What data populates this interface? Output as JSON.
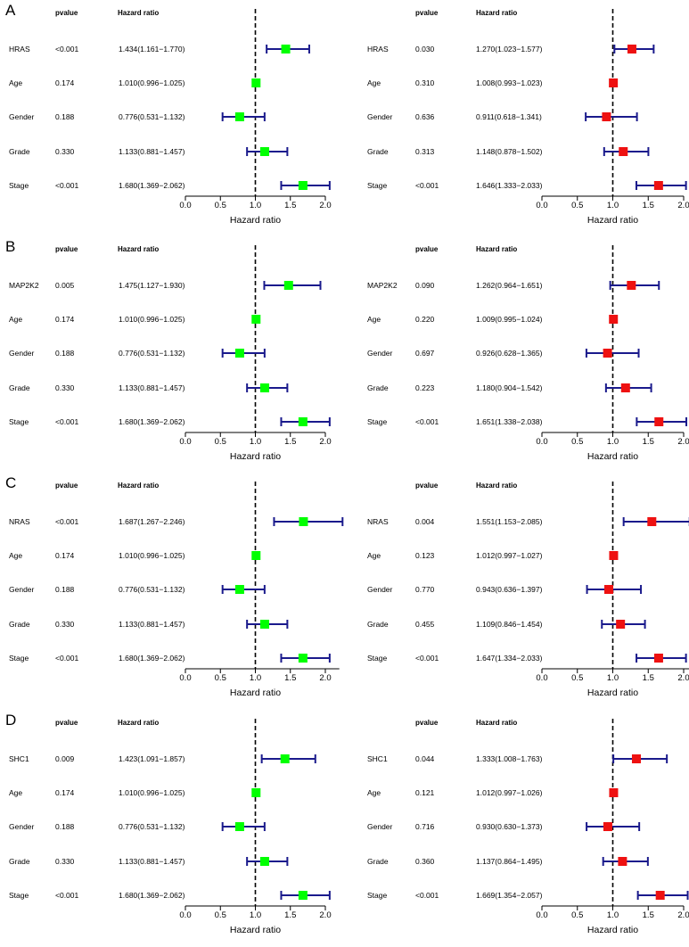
{
  "chart_data": {
    "type": "forest",
    "panels": [
      {
        "letter": "A",
        "charts": [
          {
            "color": "#00ff00",
            "header": {
              "pvalue": "pvalue",
              "hr": "Hazard ratio"
            },
            "xlabel": "Hazard ratio",
            "xlim": [
              0,
              2
            ],
            "ticks": [
              "0.0",
              "0.5",
              "1.0",
              "1.5",
              "2.0"
            ],
            "refline": 1,
            "rows": [
              {
                "label": "HRAS",
                "pvalue": "<0.001",
                "hr_text": "1.434(1.161−1.770)",
                "hr": 1.434,
                "lo": 1.161,
                "hi": 1.77
              },
              {
                "label": "Age",
                "pvalue": "0.174",
                "hr_text": "1.010(0.996−1.025)",
                "hr": 1.01,
                "lo": 0.996,
                "hi": 1.025
              },
              {
                "label": "Gender",
                "pvalue": "0.188",
                "hr_text": "0.776(0.531−1.132)",
                "hr": 0.776,
                "lo": 0.531,
                "hi": 1.132
              },
              {
                "label": "Grade",
                "pvalue": "0.330",
                "hr_text": "1.133(0.881−1.457)",
                "hr": 1.133,
                "lo": 0.881,
                "hi": 1.457
              },
              {
                "label": "Stage",
                "pvalue": "<0.001",
                "hr_text": "1.680(1.369−2.062)",
                "hr": 1.68,
                "lo": 1.369,
                "hi": 2.062
              }
            ]
          },
          {
            "color": "#ee1111",
            "header": {
              "pvalue": "pvalue",
              "hr": "Hazard ratio"
            },
            "xlabel": "Hazard ratio",
            "xlim": [
              0,
              2
            ],
            "ticks": [
              "0.0",
              "0.5",
              "1.0",
              "1.5",
              "2.0"
            ],
            "refline": 1,
            "rows": [
              {
                "label": "HRAS",
                "pvalue": "0.030",
                "hr_text": "1.270(1.023−1.577)",
                "hr": 1.27,
                "lo": 1.023,
                "hi": 1.577
              },
              {
                "label": "Age",
                "pvalue": "0.310",
                "hr_text": "1.008(0.993−1.023)",
                "hr": 1.008,
                "lo": 0.993,
                "hi": 1.023
              },
              {
                "label": "Gender",
                "pvalue": "0.636",
                "hr_text": "0.911(0.618−1.341)",
                "hr": 0.911,
                "lo": 0.618,
                "hi": 1.341
              },
              {
                "label": "Grade",
                "pvalue": "0.313",
                "hr_text": "1.148(0.878−1.502)",
                "hr": 1.148,
                "lo": 0.878,
                "hi": 1.502
              },
              {
                "label": "Stage",
                "pvalue": "<0.001",
                "hr_text": "1.646(1.333−2.033)",
                "hr": 1.646,
                "lo": 1.333,
                "hi": 2.033
              }
            ]
          }
        ]
      },
      {
        "letter": "B",
        "charts": [
          {
            "color": "#00ff00",
            "header": {
              "pvalue": "pvalue",
              "hr": "Hazard ratio"
            },
            "xlabel": "Hazard ratio",
            "xlim": [
              0,
              2
            ],
            "ticks": [
              "0.0",
              "0.5",
              "1.0",
              "1.5",
              "2.0"
            ],
            "refline": 1,
            "rows": [
              {
                "label": "MAP2K2",
                "pvalue": "0.005",
                "hr_text": "1.475(1.127−1.930)",
                "hr": 1.475,
                "lo": 1.127,
                "hi": 1.93
              },
              {
                "label": "Age",
                "pvalue": "0.174",
                "hr_text": "1.010(0.996−1.025)",
                "hr": 1.01,
                "lo": 0.996,
                "hi": 1.025
              },
              {
                "label": "Gender",
                "pvalue": "0.188",
                "hr_text": "0.776(0.531−1.132)",
                "hr": 0.776,
                "lo": 0.531,
                "hi": 1.132
              },
              {
                "label": "Grade",
                "pvalue": "0.330",
                "hr_text": "1.133(0.881−1.457)",
                "hr": 1.133,
                "lo": 0.881,
                "hi": 1.457
              },
              {
                "label": "Stage",
                "pvalue": "<0.001",
                "hr_text": "1.680(1.369−2.062)",
                "hr": 1.68,
                "lo": 1.369,
                "hi": 2.062
              }
            ]
          },
          {
            "color": "#ee1111",
            "header": {
              "pvalue": "pvalue",
              "hr": "Hazard ratio"
            },
            "xlabel": "Hazard ratio",
            "xlim": [
              0,
              2
            ],
            "ticks": [
              "0.0",
              "0.5",
              "1.0",
              "1.5",
              "2.0"
            ],
            "refline": 1,
            "rows": [
              {
                "label": "MAP2K2",
                "pvalue": "0.090",
                "hr_text": "1.262(0.964−1.651)",
                "hr": 1.262,
                "lo": 0.964,
                "hi": 1.651
              },
              {
                "label": "Age",
                "pvalue": "0.220",
                "hr_text": "1.009(0.995−1.024)",
                "hr": 1.009,
                "lo": 0.995,
                "hi": 1.024
              },
              {
                "label": "Gender",
                "pvalue": "0.697",
                "hr_text": "0.926(0.628−1.365)",
                "hr": 0.926,
                "lo": 0.628,
                "hi": 1.365
              },
              {
                "label": "Grade",
                "pvalue": "0.223",
                "hr_text": "1.180(0.904−1.542)",
                "hr": 1.18,
                "lo": 0.904,
                "hi": 1.542
              },
              {
                "label": "Stage",
                "pvalue": "<0.001",
                "hr_text": "1.651(1.338−2.038)",
                "hr": 1.651,
                "lo": 1.338,
                "hi": 2.038
              }
            ]
          }
        ]
      },
      {
        "letter": "C",
        "charts": [
          {
            "color": "#00ff00",
            "header": {
              "pvalue": "pvalue",
              "hr": "Hazard ratio"
            },
            "xlabel": "Hazard ratio",
            "xlim": [
              0,
              2.2
            ],
            "ticks": [
              "0.0",
              "0.5",
              "1.0",
              "1.5",
              "2.0"
            ],
            "refline": 1,
            "rows": [
              {
                "label": "NRAS",
                "pvalue": "<0.001",
                "hr_text": "1.687(1.267−2.246)",
                "hr": 1.687,
                "lo": 1.267,
                "hi": 2.246
              },
              {
                "label": "Age",
                "pvalue": "0.174",
                "hr_text": "1.010(0.996−1.025)",
                "hr": 1.01,
                "lo": 0.996,
                "hi": 1.025
              },
              {
                "label": "Gender",
                "pvalue": "0.188",
                "hr_text": "0.776(0.531−1.132)",
                "hr": 0.776,
                "lo": 0.531,
                "hi": 1.132
              },
              {
                "label": "Grade",
                "pvalue": "0.330",
                "hr_text": "1.133(0.881−1.457)",
                "hr": 1.133,
                "lo": 0.881,
                "hi": 1.457
              },
              {
                "label": "Stage",
                "pvalue": "<0.001",
                "hr_text": "1.680(1.369−2.062)",
                "hr": 1.68,
                "lo": 1.369,
                "hi": 2.062
              }
            ]
          },
          {
            "color": "#ee1111",
            "header": {
              "pvalue": "pvalue",
              "hr": "Hazard ratio"
            },
            "xlabel": "Hazard ratio",
            "xlim": [
              0,
              2.1
            ],
            "ticks": [
              "0.0",
              "0.5",
              "1.0",
              "1.5",
              "2.0"
            ],
            "refline": 1,
            "rows": [
              {
                "label": "NRAS",
                "pvalue": "0.004",
                "hr_text": "1.551(1.153−2.085)",
                "hr": 1.551,
                "lo": 1.153,
                "hi": 2.085
              },
              {
                "label": "Age",
                "pvalue": "0.123",
                "hr_text": "1.012(0.997−1.027)",
                "hr": 1.012,
                "lo": 0.997,
                "hi": 1.027
              },
              {
                "label": "Gender",
                "pvalue": "0.770",
                "hr_text": "0.943(0.636−1.397)",
                "hr": 0.943,
                "lo": 0.636,
                "hi": 1.397
              },
              {
                "label": "Grade",
                "pvalue": "0.455",
                "hr_text": "1.109(0.846−1.454)",
                "hr": 1.109,
                "lo": 0.846,
                "hi": 1.454
              },
              {
                "label": "Stage",
                "pvalue": "<0.001",
                "hr_text": "1.647(1.334−2.033)",
                "hr": 1.647,
                "lo": 1.334,
                "hi": 2.033
              }
            ]
          }
        ]
      },
      {
        "letter": "D",
        "charts": [
          {
            "color": "#00ff00",
            "header": {
              "pvalue": "pvalue",
              "hr": "Hazard ratio"
            },
            "xlabel": "Hazard ratio",
            "xlim": [
              0,
              2
            ],
            "ticks": [
              "0.0",
              "0.5",
              "1.0",
              "1.5",
              "2.0"
            ],
            "refline": 1,
            "rows": [
              {
                "label": "SHC1",
                "pvalue": "0.009",
                "hr_text": "1.423(1.091−1.857)",
                "hr": 1.423,
                "lo": 1.091,
                "hi": 1.857
              },
              {
                "label": "Age",
                "pvalue": "0.174",
                "hr_text": "1.010(0.996−1.025)",
                "hr": 1.01,
                "lo": 0.996,
                "hi": 1.025
              },
              {
                "label": "Gender",
                "pvalue": "0.188",
                "hr_text": "0.776(0.531−1.132)",
                "hr": 0.776,
                "lo": 0.531,
                "hi": 1.132
              },
              {
                "label": "Grade",
                "pvalue": "0.330",
                "hr_text": "1.133(0.881−1.457)",
                "hr": 1.133,
                "lo": 0.881,
                "hi": 1.457
              },
              {
                "label": "Stage",
                "pvalue": "<0.001",
                "hr_text": "1.680(1.369−2.062)",
                "hr": 1.68,
                "lo": 1.369,
                "hi": 2.062
              }
            ]
          },
          {
            "color": "#ee1111",
            "header": {
              "pvalue": "pvalue",
              "hr": "Hazard ratio"
            },
            "xlabel": "Hazard ratio",
            "xlim": [
              0,
              2
            ],
            "ticks": [
              "0.0",
              "0.5",
              "1.0",
              "1.5",
              "2.0"
            ],
            "refline": 1,
            "rows": [
              {
                "label": "SHC1",
                "pvalue": "0.044",
                "hr_text": "1.333(1.008−1.763)",
                "hr": 1.333,
                "lo": 1.008,
                "hi": 1.763
              },
              {
                "label": "Age",
                "pvalue": "0.121",
                "hr_text": "1.012(0.997−1.026)",
                "hr": 1.012,
                "lo": 0.997,
                "hi": 1.026
              },
              {
                "label": "Gender",
                "pvalue": "0.716",
                "hr_text": "0.930(0.630−1.373)",
                "hr": 0.93,
                "lo": 0.63,
                "hi": 1.373
              },
              {
                "label": "Grade",
                "pvalue": "0.360",
                "hr_text": "1.137(0.864−1.495)",
                "hr": 1.137,
                "lo": 0.864,
                "hi": 1.495
              },
              {
                "label": "Stage",
                "pvalue": "<0.001",
                "hr_text": "1.669(1.354−2.057)",
                "hr": 1.669,
                "lo": 1.354,
                "hi": 2.057
              }
            ]
          }
        ]
      }
    ]
  }
}
